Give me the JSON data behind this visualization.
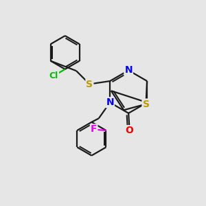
{
  "bg_color": "#e6e6e6",
  "bond_color": "#1a1a1a",
  "bond_width": 1.6,
  "dbo": 0.09,
  "atom_colors": {
    "Cl": "#00bb00",
    "S": "#bb9900",
    "N": "#0000ee",
    "O": "#ee0000",
    "F": "#ee00ee"
  },
  "figsize": [
    3.0,
    3.0
  ],
  "dpi": 100
}
